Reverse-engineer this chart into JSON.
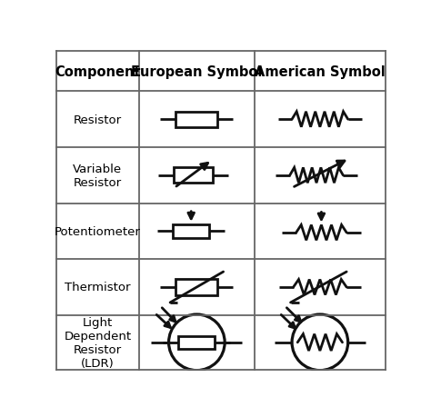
{
  "bg_color": "#ffffff",
  "border_color": "#666666",
  "text_color": "#000000",
  "header_font_size": 10.5,
  "cell_font_size": 9.5,
  "col_headers": [
    "Component",
    "European Symbol",
    "American Symbol"
  ],
  "row_labels": [
    "Resistor",
    "Variable\nResistor",
    "Potentiometer",
    "Thermistor",
    "Light\nDependent\nResistor\n(LDR)"
  ],
  "ec": "#111111",
  "slw": 2.0
}
